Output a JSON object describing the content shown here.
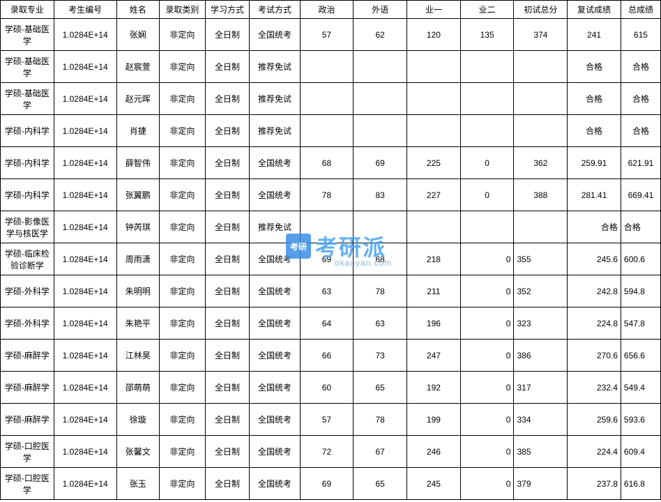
{
  "table": {
    "columns": [
      "录取专业",
      "考生编号",
      "姓名",
      "录取类别",
      "学习方式",
      "考试方式",
      "政治",
      "外语",
      "业一",
      "业二",
      "初试总分",
      "复试成绩",
      "总成绩"
    ],
    "rows": [
      {
        "major": "学硕-基础医学",
        "id": "1.0284E+14",
        "name": "张娴",
        "type": "非定向",
        "study": "全日制",
        "exam": "全国统考",
        "pol": "57",
        "lang": "62",
        "sub1": "120",
        "sub2": "135",
        "init": "374",
        "retest": "241",
        "total": "615"
      },
      {
        "major": "学硕-基础医学",
        "id": "1.0284E+14",
        "name": "赵宸萱",
        "type": "非定向",
        "study": "全日制",
        "exam": "推荐免试",
        "pol": "",
        "lang": "",
        "sub1": "",
        "sub2": "",
        "init": "",
        "retest": "合格",
        "total": "合格"
      },
      {
        "major": "学硕-基础医学",
        "id": "1.0284E+14",
        "name": "赵元晖",
        "type": "非定向",
        "study": "全日制",
        "exam": "推荐免试",
        "pol": "",
        "lang": "",
        "sub1": "",
        "sub2": "",
        "init": "",
        "retest": "合格",
        "total": "合格"
      },
      {
        "major": "学硕-内科学",
        "id": "1.0284E+14",
        "name": "肖捷",
        "type": "非定向",
        "study": "全日制",
        "exam": "推荐免试",
        "pol": "",
        "lang": "",
        "sub1": "",
        "sub2": "",
        "init": "",
        "retest": "合格",
        "total": "合格"
      },
      {
        "major": "学硕-内科学",
        "id": "1.0284E+14",
        "name": "薛智伟",
        "type": "非定向",
        "study": "全日制",
        "exam": "全国统考",
        "pol": "68",
        "lang": "69",
        "sub1": "225",
        "sub2": "0",
        "init": "362",
        "retest": "259.91",
        "total": "621.91"
      },
      {
        "major": "学硕-内科学",
        "id": "1.0284E+14",
        "name": "张翼鹏",
        "type": "非定向",
        "study": "全日制",
        "exam": "全国统考",
        "pol": "78",
        "lang": "83",
        "sub1": "227",
        "sub2": "0",
        "init": "388",
        "retest": "281.41",
        "total": "669.41"
      },
      {
        "major": "学硕-影像医学与核医学",
        "id": "1.0284E+14",
        "name": "钟芮琪",
        "type": "非定向",
        "study": "全日制",
        "exam": "推荐免试",
        "pol": "",
        "lang": "",
        "sub1": "",
        "sub2": "",
        "init": "",
        "retest": "合格",
        "total": "合格",
        "retest_align": "right",
        "total_align": "left"
      },
      {
        "major": "学硕-临床检验诊断学",
        "id": "1.0284E+14",
        "name": "周雨潇",
        "type": "非定向",
        "study": "全日制",
        "exam": "全国统考",
        "pol": "69",
        "lang": "68",
        "sub1": "218",
        "sub2": "0",
        "init": "355",
        "retest": "245.6",
        "total": "600.6",
        "sub2_align": "right",
        "init_align": "left",
        "retest_align": "right",
        "total_align": "left"
      },
      {
        "major": "学硕-外科学",
        "id": "1.0284E+14",
        "name": "朱明明",
        "type": "非定向",
        "study": "全日制",
        "exam": "全国统考",
        "pol": "63",
        "lang": "78",
        "sub1": "211",
        "sub2": "0",
        "init": "352",
        "retest": "242.8",
        "total": "594.8",
        "sub2_align": "right",
        "init_align": "left",
        "retest_align": "right",
        "total_align": "left"
      },
      {
        "major": "学硕-外科学",
        "id": "1.0284E+14",
        "name": "朱艳平",
        "type": "非定向",
        "study": "全日制",
        "exam": "全国统考",
        "pol": "64",
        "lang": "63",
        "sub1": "196",
        "sub2": "0",
        "init": "323",
        "retest": "224.8",
        "total": "547.8",
        "sub2_align": "right",
        "init_align": "left",
        "retest_align": "right",
        "total_align": "left"
      },
      {
        "major": "学硕-麻醉学",
        "id": "1.0284E+14",
        "name": "江林昊",
        "type": "非定向",
        "study": "全日制",
        "exam": "全国统考",
        "pol": "66",
        "lang": "73",
        "sub1": "247",
        "sub2": "0",
        "init": "386",
        "retest": "270.6",
        "total": "656.6",
        "sub2_align": "right",
        "init_align": "left",
        "retest_align": "right",
        "total_align": "left"
      },
      {
        "major": "学硕-麻醉学",
        "id": "1.0284E+14",
        "name": "邵萌萌",
        "type": "非定向",
        "study": "全日制",
        "exam": "全国统考",
        "pol": "60",
        "lang": "65",
        "sub1": "192",
        "sub2": "0",
        "init": "317",
        "retest": "232.4",
        "total": "549.4",
        "sub2_align": "right",
        "init_align": "left",
        "retest_align": "right",
        "total_align": "left"
      },
      {
        "major": "学硕-麻醉学",
        "id": "1.0284E+14",
        "name": "徐璇",
        "type": "非定向",
        "study": "全日制",
        "exam": "全国统考",
        "pol": "57",
        "lang": "78",
        "sub1": "199",
        "sub2": "0",
        "init": "334",
        "retest": "259.6",
        "total": "593.6",
        "sub2_align": "right",
        "init_align": "left",
        "retest_align": "right",
        "total_align": "left"
      },
      {
        "major": "学硕-口腔医学",
        "id": "1.0284E+14",
        "name": "张馨文",
        "type": "非定向",
        "study": "全日制",
        "exam": "全国统考",
        "pol": "72",
        "lang": "67",
        "sub1": "246",
        "sub2": "0",
        "init": "385",
        "retest": "224.4",
        "total": "609.4",
        "sub2_align": "right",
        "init_align": "left",
        "retest_align": "right",
        "total_align": "left"
      },
      {
        "major": "学硕-口腔医学",
        "id": "1.0284E+14",
        "name": "张玉",
        "type": "非定向",
        "study": "全日制",
        "exam": "全国统考",
        "pol": "69",
        "lang": "65",
        "sub1": "245",
        "sub2": "0",
        "init": "379",
        "retest": "237.8",
        "total": "616.8",
        "sub2_align": "right",
        "init_align": "left",
        "retest_align": "right",
        "total_align": "left"
      }
    ]
  },
  "watermark": {
    "icon_text": "考研",
    "brand": "考研派",
    "url": "okaoyan.com"
  }
}
